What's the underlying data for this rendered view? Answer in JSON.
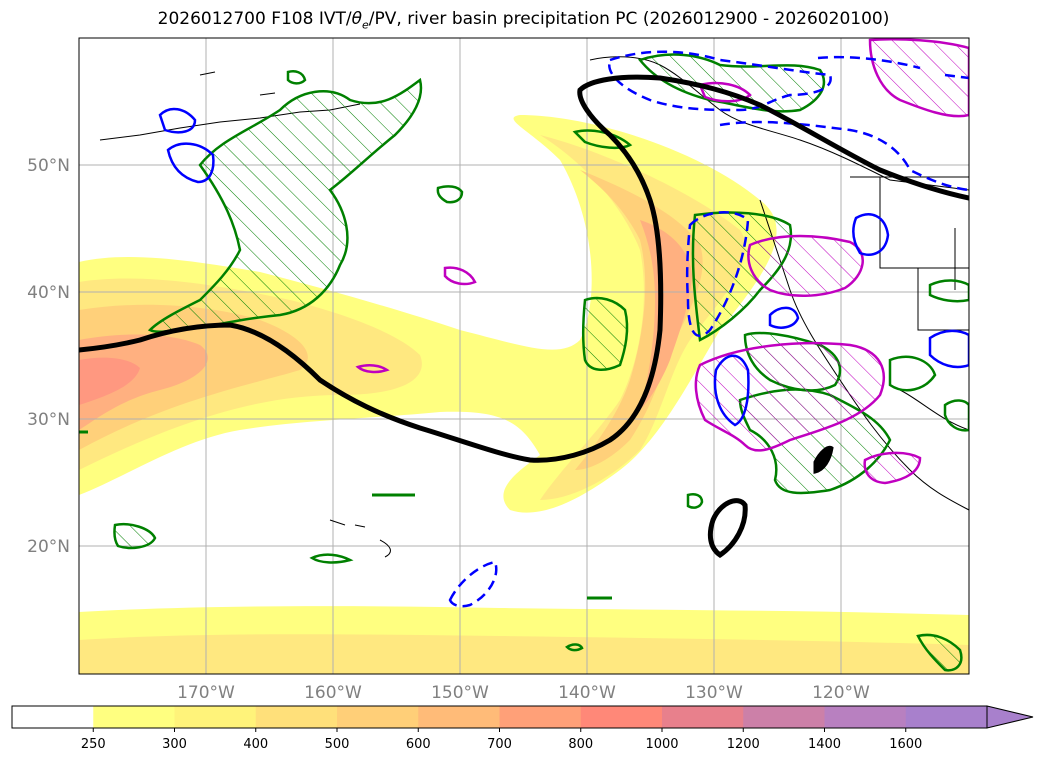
{
  "title": {
    "prefix": "2026012700 F108 IVT/",
    "theta": "θ",
    "theta_sub": "e",
    "suffix": "/PV, river basin precipitation PC (2026012900 - 2026020100)"
  },
  "map": {
    "lat_labels": [
      "50°N",
      "40°N",
      "30°N",
      "20°N"
    ],
    "lon_labels": [
      "170°W",
      "160°W",
      "150°W",
      "140°W",
      "130°W",
      "120°W"
    ]
  },
  "colorbar": {
    "levels": [
      "250",
      "300",
      "400",
      "500",
      "600",
      "700",
      "800",
      "1000",
      "1200",
      "1400",
      "1600"
    ],
    "colors": [
      "#ffffff",
      "#ffff80",
      "#fff37a",
      "#ffe07a",
      "#ffcf78",
      "#ffbb78",
      "#ffa078",
      "#ff8878",
      "#e8808c",
      "#cc80a8",
      "#b880c0",
      "#a880cc"
    ]
  },
  "colors": {
    "ivt_fill": [
      "#ffff80",
      "#ffe88a",
      "#ffd07a",
      "#ffb080",
      "#ff9080"
    ],
    "pv_contour": "#000000",
    "green_contour": "#008000",
    "magenta_contour": "#c000c0",
    "blue_contour": "#0000ff",
    "grid": "#b0b0b0"
  }
}
